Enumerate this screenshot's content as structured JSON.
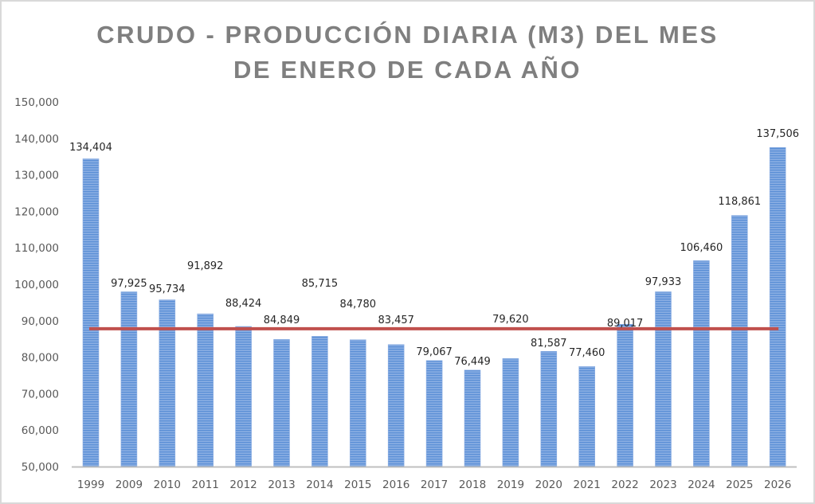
{
  "chart_data": {
    "type": "bar",
    "title": "CRUDO - PRODUCCIÓN DIARIA (M3) DEL MES DE ENERO DE CADA AÑO",
    "title_lines": [
      "CRUDO - PRODUCCIÓN DIARIA (M3) DEL MES",
      "DE ENERO DE CADA AÑO"
    ],
    "xlabel": "",
    "ylabel": "",
    "ylim": [
      50000,
      150000
    ],
    "yticks": [
      50000,
      60000,
      70000,
      80000,
      90000,
      100000,
      110000,
      120000,
      130000,
      140000,
      150000
    ],
    "ytick_labels": [
      "50,000",
      "60,000",
      "70,000",
      "80,000",
      "90,000",
      "100,000",
      "110,000",
      "120,000",
      "130,000",
      "140,000",
      "150,000"
    ],
    "grid": false,
    "legend": "none",
    "categories": [
      "1999",
      "2009",
      "2010",
      "2011",
      "2012",
      "2013",
      "2014",
      "2015",
      "2016",
      "2017",
      "2018",
      "2019",
      "2020",
      "2021",
      "2022",
      "2023",
      "2024",
      "2025",
      "2026"
    ],
    "values": [
      134404,
      97925,
      95734,
      91892,
      88424,
      84849,
      85715,
      84780,
      83457,
      79067,
      76449,
      79620,
      81587,
      77460,
      89017,
      97933,
      106460,
      118861,
      137506
    ],
    "value_labels": [
      "134,404",
      "97,925",
      "95,734",
      "91,892",
      "88,424",
      "84,849",
      "85,715",
      "84,780",
      "83,457",
      "79,067",
      "76,449",
      "79,620",
      "81,587",
      "77,460",
      "89,017",
      "97,933",
      "106,460",
      "118,861",
      "137,506"
    ],
    "reference_line": {
      "value": 87800,
      "color": "#c0504d"
    },
    "bar_color": "#5b8fd6",
    "bar_stripe_color": "#a9c4ec"
  }
}
